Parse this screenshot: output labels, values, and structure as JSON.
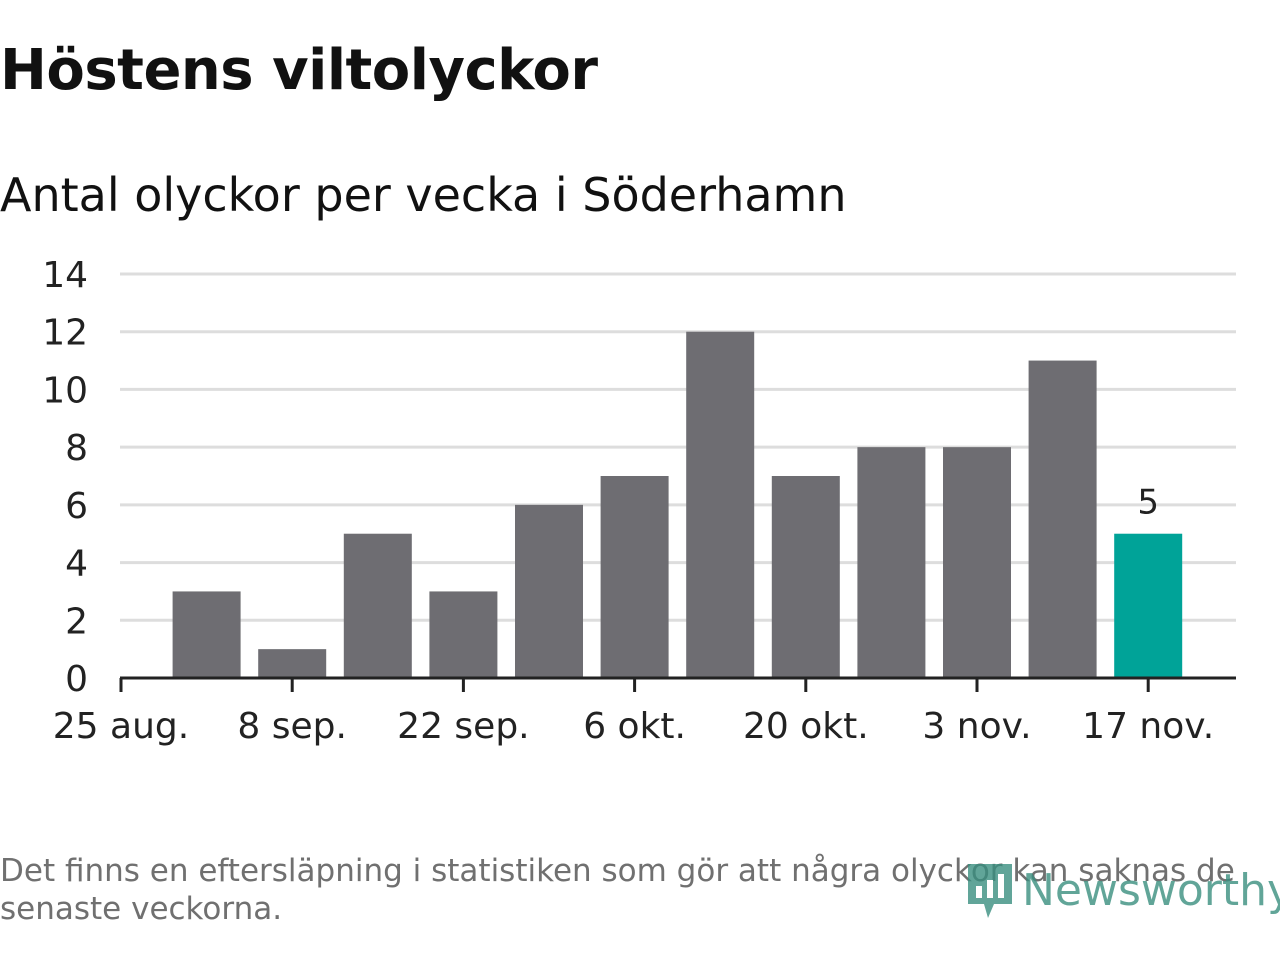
{
  "header": {
    "title": "Höstens viltolyckor",
    "subtitle": "Antal olyckor per vecka i Söderhamn"
  },
  "footer": {
    "note": "Det finns en eftersläpning i statistiken som gör att några olyckor kan saknas de senaste veckorna.",
    "logo_text": "Newsworthy"
  },
  "colors": {
    "bar": "#6e6d72",
    "highlight": "#00a398",
    "grid": "#dddddd",
    "axis": "#222222",
    "text": "#222222"
  },
  "chart_data": {
    "type": "bar",
    "title": "Höstens viltolyckor",
    "subtitle": "Antal olyckor per vecka i Söderhamn",
    "xlabel": "",
    "ylabel": "",
    "ylim": [
      0,
      14
    ],
    "yticks": [
      "0",
      "2",
      "4",
      "6",
      "8",
      "10",
      "12",
      "14"
    ],
    "ytick_values": [
      0,
      2,
      4,
      6,
      8,
      10,
      12,
      14
    ],
    "xtick_labels": [
      "25 aug.",
      "8 sep.",
      "22 sep.",
      "6 okt.",
      "20 okt.",
      "3 nov.",
      "17 nov."
    ],
    "xtick_week_index": [
      0,
      2,
      4,
      6,
      8,
      10,
      12
    ],
    "values": [
      3,
      1,
      5,
      3,
      6,
      7,
      12,
      7,
      8,
      8,
      11,
      5
    ],
    "bar_week_index": [
      1,
      2,
      3,
      4,
      5,
      6,
      7,
      8,
      9,
      10,
      11,
      12
    ],
    "highlight_index": 11,
    "data_labels": [
      {
        "bar_index": 11,
        "text": "5"
      }
    ],
    "grid": true
  }
}
